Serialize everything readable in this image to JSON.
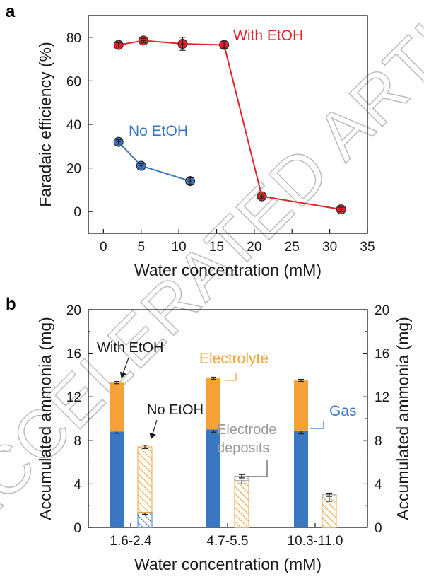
{
  "watermark": "ACCELERATED ARTICLE PREVIEW",
  "colors": {
    "red": "#e0242c",
    "blue": "#3a77c2",
    "orange": "#f5a13a",
    "gray": "#9a9a9a",
    "axis": "#1a1a1a"
  },
  "chart_data": [
    {
      "panel": "a",
      "type": "line",
      "xlabel": "Water concentration (mM)",
      "ylabel": "Faradaic efficiency (%)",
      "xlim": [
        -2,
        35
      ],
      "ylim": [
        -10,
        90
      ],
      "xticks": [
        "0",
        "5",
        "10",
        "15",
        "20",
        "25",
        "30",
        "35"
      ],
      "yticks": [
        "0",
        "20",
        "40",
        "60",
        "80"
      ],
      "series": [
        {
          "name": "With EtOH",
          "label": "With EtOH",
          "x": [
            2,
            5.3,
            10.5,
            16,
            21,
            31.5
          ],
          "y": [
            76.5,
            78.5,
            77,
            76.5,
            7,
            1
          ],
          "yerr": [
            1,
            1,
            3,
            1.5,
            1,
            1
          ]
        },
        {
          "name": "No EtOH",
          "label": "No EtOH",
          "x": [
            2,
            5,
            11.5
          ],
          "y": [
            32,
            21,
            14
          ],
          "yerr": [
            1,
            1,
            1.5
          ]
        }
      ]
    },
    {
      "panel": "b",
      "type": "bar",
      "stacked": true,
      "xlabel": "Water concentration (mM)",
      "ylabel_left": "Accumulated ammonia (mg)",
      "ylabel_right": "Accumulated ammonia (mg)",
      "ylim": [
        0,
        20
      ],
      "yticks": [
        "0",
        "4",
        "8",
        "12",
        "16",
        "20"
      ],
      "categories": [
        "1.6-2.4",
        "4.7-5.5",
        "10.3-11.0"
      ],
      "series": [
        {
          "name": "With EtOH - Gas",
          "pattern": "solid",
          "values": [
            8.8,
            9.0,
            8.9
          ],
          "errors": [
            0.15,
            0.25,
            0.3
          ]
        },
        {
          "name": "With EtOH - Electrolyte",
          "pattern": "solid",
          "values": [
            4.5,
            4.7,
            4.6
          ],
          "errors": [
            0.1,
            0.1,
            0.1
          ]
        },
        {
          "name": "No EtOH - Gas",
          "pattern": "hatched",
          "values": [
            1.4,
            0,
            0
          ],
          "errors": [
            0.2,
            0,
            0
          ]
        },
        {
          "name": "No EtOH - Electrolyte",
          "pattern": "hatched",
          "values": [
            6.0,
            4.3,
            2.7
          ],
          "errors": [
            0.15,
            0.3,
            0.3
          ]
        },
        {
          "name": "No EtOH - Electrode deposits",
          "pattern": "hatched",
          "values": [
            0,
            0.4,
            0.3
          ],
          "errors": [
            0,
            0.15,
            0.15
          ]
        }
      ],
      "annotations": {
        "with_etoh": "With EtOH",
        "no_etoh": "No EtOH",
        "electrolyte": "Electrolyte",
        "electrode_deposits_line1": "Electrode",
        "electrode_deposits_line2": "deposits",
        "gas": "Gas"
      }
    }
  ]
}
